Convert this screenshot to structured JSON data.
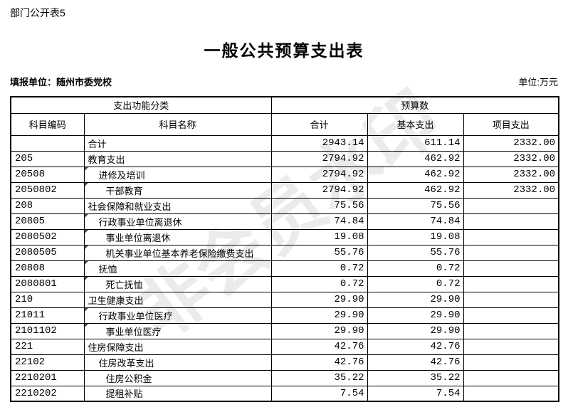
{
  "page": {
    "doc_label": "部门公开表5",
    "title": "一般公共预算支出表",
    "reporting_unit": "填报单位：随州市委党校",
    "unit_note": "单位:万元",
    "watermark_text": "非会员水印",
    "marker_color": "#008000"
  },
  "table": {
    "header": {
      "function_group": "支出功能分类",
      "budget_group": "预算数",
      "col_code": "科目编码",
      "col_name": "科目名称",
      "col_total": "合计",
      "col_basic": "基本支出",
      "col_project": "项目支出"
    },
    "rows": [
      {
        "code": "",
        "name": "合计",
        "indent": 0,
        "marker": false,
        "total": "2943.14",
        "basic": "611.14",
        "project": "2332.00"
      },
      {
        "code": "205",
        "name": "教育支出",
        "indent": 0,
        "marker": false,
        "total": "2794.92",
        "basic": "462.92",
        "project": "2332.00"
      },
      {
        "code": "20508",
        "name": "进修及培训",
        "indent": 1,
        "marker": true,
        "total": "2794.92",
        "basic": "462.92",
        "project": "2332.00"
      },
      {
        "code": "2050802",
        "name": "干部教育",
        "indent": 2,
        "marker": true,
        "total": "2794.92",
        "basic": "462.92",
        "project": "2332.00"
      },
      {
        "code": "208",
        "name": "社会保障和就业支出",
        "indent": 0,
        "marker": false,
        "total": "75.56",
        "basic": "75.56",
        "project": ""
      },
      {
        "code": "20805",
        "name": "行政事业单位离退休",
        "indent": 1,
        "marker": true,
        "total": "74.84",
        "basic": "74.84",
        "project": ""
      },
      {
        "code": "2080502",
        "name": "事业单位离退休",
        "indent": 2,
        "marker": true,
        "total": "19.08",
        "basic": "19.08",
        "project": ""
      },
      {
        "code": "2080505",
        "name": "机关事业单位基本养老保险缴费支出",
        "indent": 2,
        "marker": true,
        "total": "55.76",
        "basic": "55.76",
        "project": ""
      },
      {
        "code": "20808",
        "name": "抚恤",
        "indent": 1,
        "marker": true,
        "total": "0.72",
        "basic": "0.72",
        "project": ""
      },
      {
        "code": "2080801",
        "name": "死亡抚恤",
        "indent": 2,
        "marker": true,
        "total": "0.72",
        "basic": "0.72",
        "project": ""
      },
      {
        "code": "210",
        "name": "卫生健康支出",
        "indent": 0,
        "marker": false,
        "total": "29.90",
        "basic": "29.90",
        "project": ""
      },
      {
        "code": "21011",
        "name": "行政事业单位医疗",
        "indent": 1,
        "marker": true,
        "total": "29.90",
        "basic": "29.90",
        "project": ""
      },
      {
        "code": "2101102",
        "name": "事业单位医疗",
        "indent": 2,
        "marker": true,
        "total": "29.90",
        "basic": "29.90",
        "project": ""
      },
      {
        "code": "221",
        "name": "住房保障支出",
        "indent": 0,
        "marker": false,
        "total": "42.76",
        "basic": "42.76",
        "project": ""
      },
      {
        "code": "22102",
        "name": "住房改革支出",
        "indent": 1,
        "marker": false,
        "total": "42.76",
        "basic": "42.76",
        "project": ""
      },
      {
        "code": "2210201",
        "name": "住房公积金",
        "indent": 2,
        "marker": false,
        "total": "35.22",
        "basic": "35.22",
        "project": ""
      },
      {
        "code": "2210202",
        "name": "提租补贴",
        "indent": 2,
        "marker": false,
        "total": "7.54",
        "basic": "7.54",
        "project": ""
      }
    ]
  }
}
